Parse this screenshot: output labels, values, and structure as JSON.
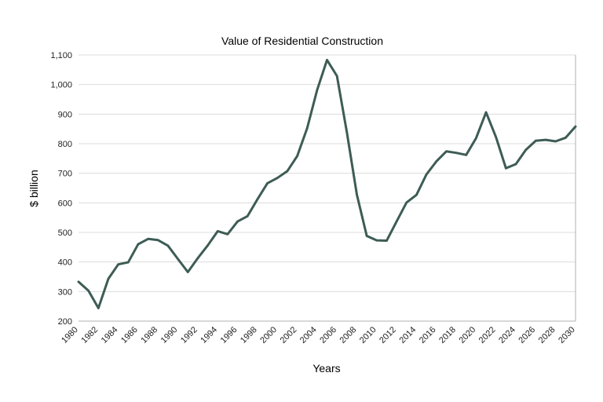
{
  "chart_data": {
    "type": "line",
    "title": "Value of Residential Construction",
    "xlabel": "Years",
    "ylabel": "$ billion",
    "xlim": [
      1980,
      2030
    ],
    "ylim": [
      200,
      1100
    ],
    "y_ticks": [
      200,
      300,
      400,
      500,
      600,
      700,
      800,
      900,
      1000,
      1100
    ],
    "y_tick_labels": [
      "200",
      "300",
      "400",
      "500",
      "600",
      "700",
      "800",
      "900",
      "1,000",
      "1,100"
    ],
    "x_ticks": [
      1980,
      1982,
      1984,
      1986,
      1988,
      1990,
      1992,
      1994,
      1996,
      1998,
      2000,
      2002,
      2004,
      2006,
      2008,
      2010,
      2012,
      2014,
      2016,
      2018,
      2020,
      2022,
      2024,
      2026,
      2028,
      2030
    ],
    "x_tick_labels": [
      "1980",
      "1982",
      "1984",
      "1986",
      "1988",
      "1990",
      "1992",
      "1994",
      "1996",
      "1998",
      "2000",
      "2002",
      "2004",
      "2006",
      "2008",
      "2010",
      "2012",
      "2014",
      "2016",
      "2018",
      "2020",
      "2022",
      "2024",
      "2026",
      "2028",
      "2030"
    ],
    "grid": "horizontal",
    "line_color": "#3d5c55",
    "series": [
      {
        "x": [
          1980,
          1981,
          1982,
          1983,
          1984,
          1985,
          1986,
          1987,
          1988,
          1989,
          1990,
          1991,
          1992,
          1993,
          1994,
          1995,
          1996,
          1997,
          1998,
          1999,
          2000,
          2001,
          2002,
          2003,
          2004,
          2005,
          2006,
          2007,
          2008,
          2009,
          2010,
          2011,
          2012,
          2013,
          2014,
          2015,
          2016,
          2017,
          2018,
          2019,
          2020,
          2021,
          2022,
          2023,
          2024,
          2025,
          2026,
          2027,
          2028,
          2029,
          2030
        ],
        "values": [
          333,
          303,
          244,
          343,
          392,
          399,
          460,
          478,
          474,
          455,
          410,
          366,
          413,
          456,
          504,
          494,
          537,
          555,
          612,
          666,
          684,
          707,
          758,
          852,
          981,
          1083,
          1029,
          838,
          628,
          488,
          473,
          472,
          537,
          601,
          627,
          696,
          740,
          774,
          769,
          762,
          819,
          906,
          822,
          717,
          731,
          779,
          810,
          813,
          808,
          820,
          858
        ]
      }
    ]
  }
}
